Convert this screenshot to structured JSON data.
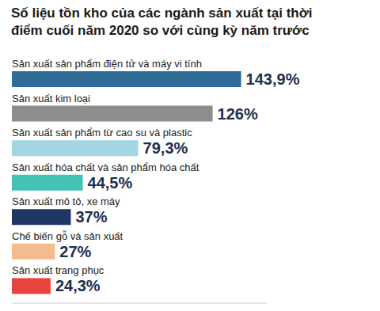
{
  "chart_data": {
    "type": "bar",
    "title": "Số liệu tồn kho của các ngành sản xuất tại thời điểm cuối năm 2020 so với cùng kỳ năm trước",
    "orientation": "horizontal",
    "categories": [
      "Sản xuất sản phẩm điện tử và máy vi tính",
      "Sản xuất kim loại",
      "Sản xuất sản phẩm từ cao su và plastic",
      "Sản xuất hóa chất và sản phẩm hóa chất",
      "Sản xuất mô tô, xe máy",
      "Chế biến gỗ và sản xuất",
      "Sản xuất trang phục"
    ],
    "values": [
      143.9,
      126,
      79.3,
      44.5,
      37,
      27,
      24.3
    ],
    "value_labels": [
      "143,9%",
      "126%",
      "79,3%",
      "44,5%",
      "37%",
      "27%",
      "24,3%"
    ],
    "colors": [
      "#2f6d96",
      "#8d8d8d",
      "#a3d6e2",
      "#43c2b6",
      "#1f3563",
      "#f4bb8e",
      "#e8433c"
    ],
    "xlim": [
      0,
      160
    ],
    "data_labels": true,
    "tick_labels": false,
    "grid": false
  }
}
